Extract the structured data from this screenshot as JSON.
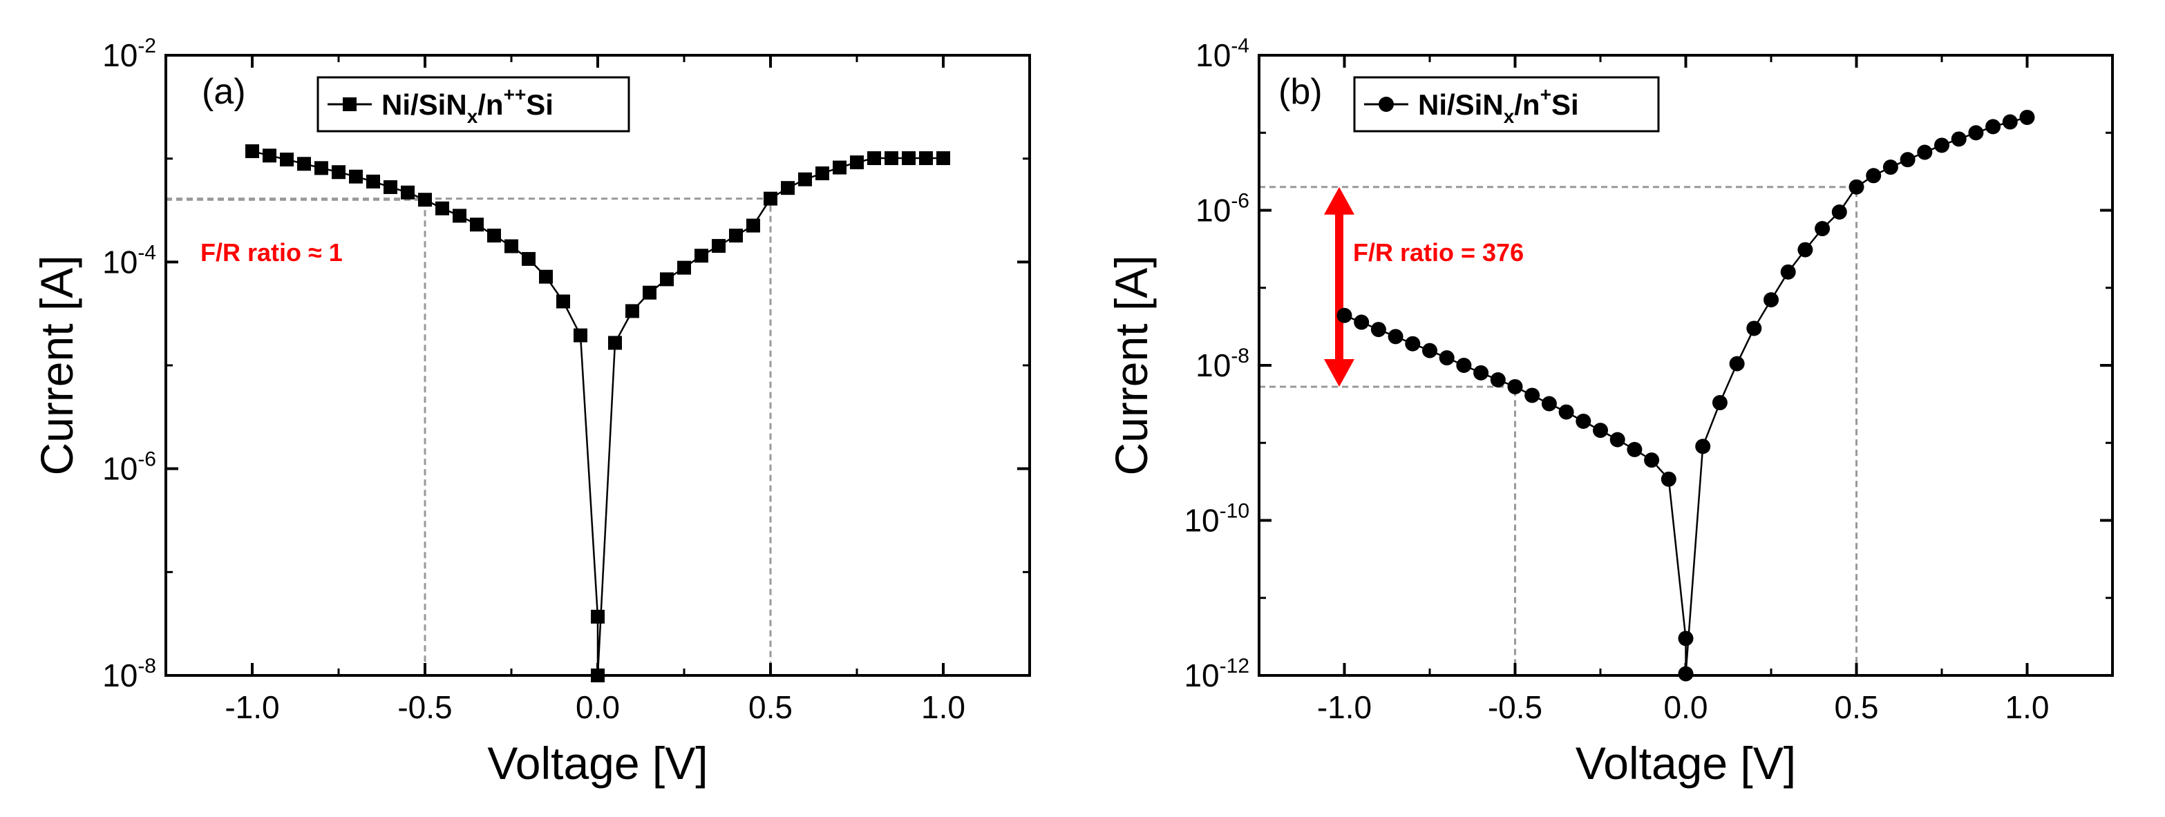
{
  "chart_data": [
    {
      "type": "scatter",
      "panel_label": "(a)",
      "xlabel": "Voltage [V]",
      "ylabel": "Current [A]",
      "xlim": [
        -1.25,
        1.25
      ],
      "yscale": "log",
      "ylim_exp": [
        -8,
        -2
      ],
      "x_ticks": [
        -1.0,
        -0.5,
        0.0,
        0.5,
        1.0
      ],
      "x_tick_labels": [
        "-1.0",
        "-0.5",
        "0.0",
        "0.5",
        "1.0"
      ],
      "y_ticks_exp": [
        -8,
        -6,
        -4,
        -2
      ],
      "y_tick_base": "10",
      "y_tick_exps": [
        "-8",
        "-6",
        "-4",
        "-2"
      ],
      "legend": {
        "main": "Ni/SiN",
        "sub": "x",
        "rest": "/n",
        "sup": "++",
        "tail": "Si"
      },
      "marker": "square",
      "annotation": "F/R ratio ≈ 1",
      "guides": [
        {
          "x": -0.5,
          "y": 0.0004
        },
        {
          "x": 0.5,
          "y": 0.00041
        }
      ],
      "series": [
        {
          "name": "Ni/SiNx/n++Si",
          "x": [
            -1.0,
            -0.95,
            -0.9,
            -0.85,
            -0.8,
            -0.75,
            -0.7,
            -0.65,
            -0.6,
            -0.55,
            -0.5,
            -0.45,
            -0.4,
            -0.35,
            -0.3,
            -0.25,
            -0.2,
            -0.15,
            -0.1,
            -0.05,
            0.0,
            0.0,
            0.05,
            0.1,
            0.15,
            0.2,
            0.25,
            0.3,
            0.35,
            0.4,
            0.45,
            0.5,
            0.55,
            0.6,
            0.65,
            0.7,
            0.75,
            0.8,
            0.85,
            0.9,
            0.95,
            1.0
          ],
          "y": [
            0.00118,
            0.00107,
            0.00098,
            0.00089,
            0.00081,
            0.00074,
            0.00067,
            0.0006,
            0.00053,
            0.00047,
            0.0004,
            0.00033,
            0.00028,
            0.00023,
            0.00018,
            0.000142,
            0.000107,
            7.2e-05,
            4.15e-05,
            1.95e-05,
            3.7e-08,
            1e-08,
            1.65e-05,
            3.35e-05,
            5.05e-05,
            6.8e-05,
            8.8e-05,
            0.000115,
            0.000143,
            0.00018,
            0.000225,
            0.00041,
            0.00052,
            0.00063,
            0.00072,
            0.00082,
            0.00092,
            0.00101,
            0.00101,
            0.00101,
            0.00101,
            0.00101
          ]
        }
      ]
    },
    {
      "type": "scatter",
      "panel_label": "(b)",
      "xlabel": "Voltage [V]",
      "ylabel": "Current [A]",
      "xlim": [
        -1.25,
        1.25
      ],
      "yscale": "log",
      "ylim_exp": [
        -12,
        -4
      ],
      "x_ticks": [
        -1.0,
        -0.5,
        0.0,
        0.5,
        1.0
      ],
      "x_tick_labels": [
        "-1.0",
        "-0.5",
        "0.0",
        "0.5",
        "1.0"
      ],
      "y_ticks_exp": [
        -12,
        -10,
        -8,
        -6,
        -4
      ],
      "y_tick_base": "10",
      "y_tick_exps": [
        "-12",
        "-10",
        "-8",
        "-6",
        "-4"
      ],
      "legend": {
        "main": "Ni/SiN",
        "sub": "x",
        "rest": "/n",
        "sup": "+",
        "tail": "Si"
      },
      "marker": "circle",
      "annotation": "F/R ratio = 376",
      "guides": [
        {
          "x": -0.5,
          "y": 5.3e-09
        },
        {
          "x": 0.5,
          "y": 2e-06
        }
      ],
      "series": [
        {
          "name": "Ni/SiNx/n+Si",
          "x": [
            -1.0,
            -0.95,
            -0.9,
            -0.85,
            -0.8,
            -0.75,
            -0.7,
            -0.65,
            -0.6,
            -0.55,
            -0.5,
            -0.45,
            -0.4,
            -0.35,
            -0.3,
            -0.25,
            -0.2,
            -0.15,
            -0.1,
            -0.05,
            0.0,
            0.0,
            0.05,
            0.1,
            0.15,
            0.2,
            0.25,
            0.3,
            0.35,
            0.4,
            0.45,
            0.5,
            0.55,
            0.6,
            0.65,
            0.7,
            0.75,
            0.8,
            0.85,
            0.9,
            0.95,
            1.0
          ],
          "y": [
            4.4e-08,
            3.6e-08,
            2.9e-08,
            2.35e-08,
            1.9e-08,
            1.55e-08,
            1.25e-08,
            1e-08,
            8e-09,
            6.5e-09,
            5.3e-09,
            4.1e-09,
            3.2e-09,
            2.5e-09,
            1.9e-09,
            1.45e-09,
            1.1e-09,
            8.2e-10,
            6e-10,
            3.4e-10,
            3e-12,
            1.05e-12,
            9e-10,
            3.3e-09,
            1.05e-08,
            3e-08,
            7e-08,
            1.6e-07,
            3.1e-07,
            5.8e-07,
            9.5e-07,
            2e-06,
            2.8e-06,
            3.6e-06,
            4.5e-06,
            5.6e-06,
            6.9e-06,
            8.3e-06,
            1e-05,
            1.2e-05,
            1.38e-05,
            1.58e-05
          ]
        }
      ]
    }
  ]
}
